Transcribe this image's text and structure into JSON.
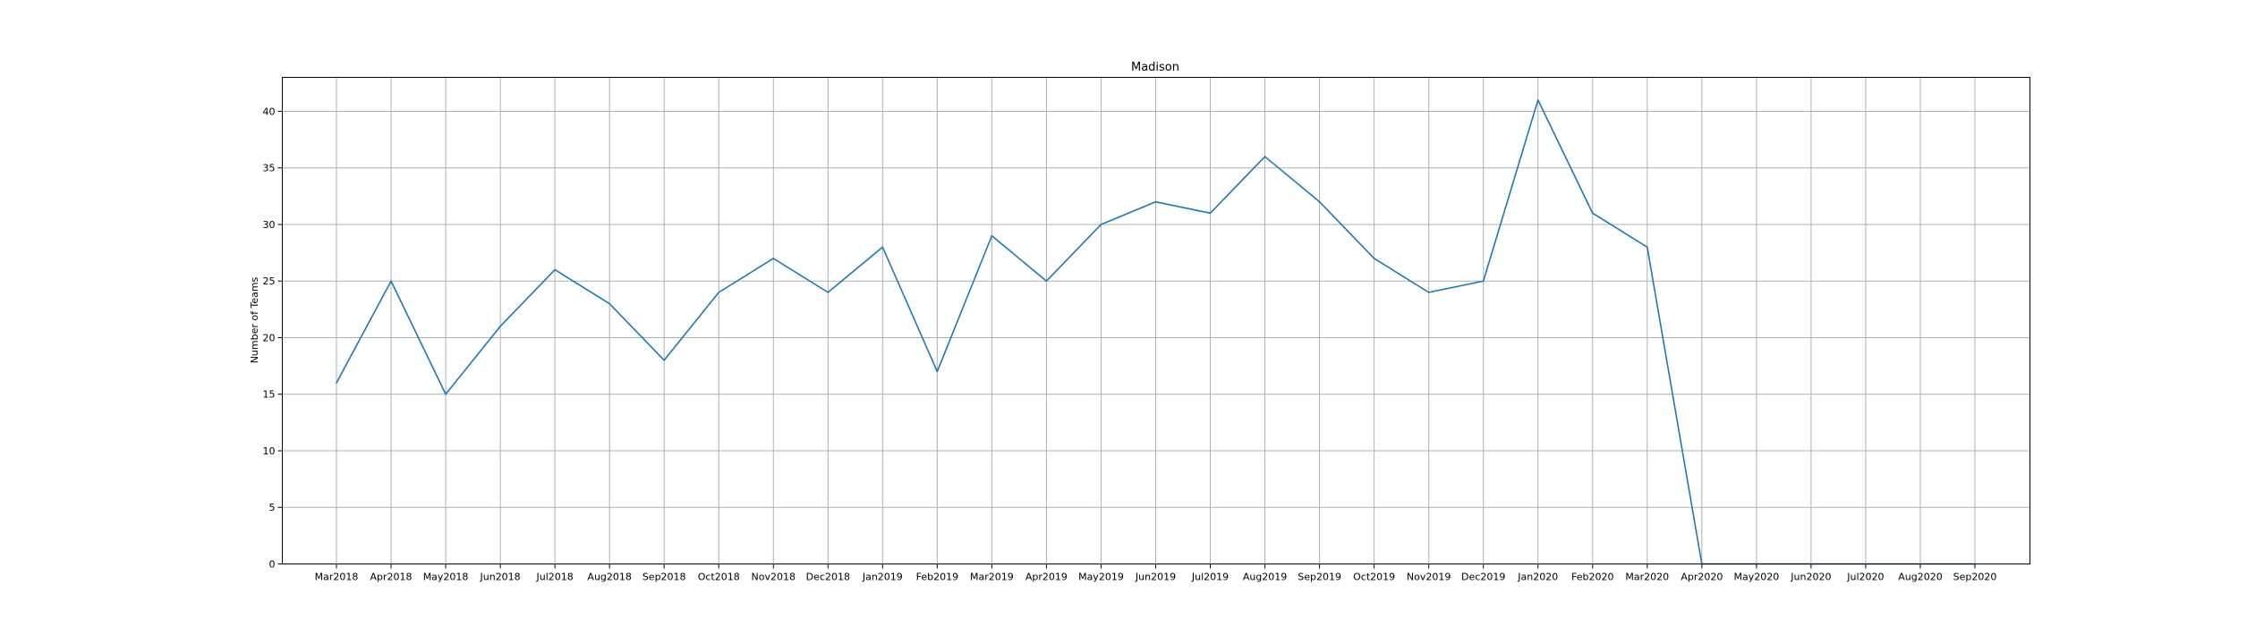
{
  "chart_data": {
    "type": "line",
    "title": "Madison",
    "xlabel": "",
    "ylabel": "Number of Teams",
    "ylim": [
      0,
      43
    ],
    "yticks": [
      0,
      5,
      10,
      15,
      20,
      25,
      30,
      35,
      40
    ],
    "grid": true,
    "legend": "none",
    "colors": {
      "series": "#1f77b4",
      "grid": "#b0b0b0"
    },
    "categories": [
      "Mar2018",
      "Apr2018",
      "May2018",
      "Jun2018",
      "Jul2018",
      "Aug2018",
      "Sep2018",
      "Oct2018",
      "Nov2018",
      "Dec2018",
      "Jan2019",
      "Feb2019",
      "Mar2019",
      "Apr2019",
      "May2019",
      "Jun2019",
      "Jul2019",
      "Aug2019",
      "Sep2019",
      "Oct2019",
      "Nov2019",
      "Dec2019",
      "Jan2020",
      "Feb2020",
      "Mar2020",
      "Apr2020",
      "May2020",
      "Jun2020",
      "Jul2020",
      "Aug2020",
      "Sep2020"
    ],
    "series": [
      {
        "values": [
          16,
          25,
          15,
          21,
          26,
          23,
          18,
          24,
          27,
          24,
          28,
          17,
          29,
          25,
          30,
          32,
          31,
          36,
          32,
          27,
          24,
          25,
          41,
          31,
          28,
          0,
          0,
          0,
          0,
          0,
          0
        ]
      }
    ]
  }
}
